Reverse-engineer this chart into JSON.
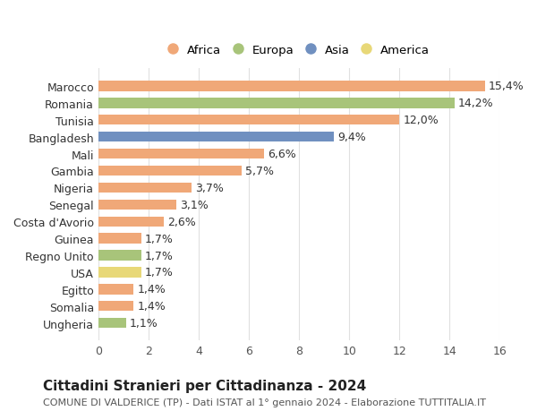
{
  "categories": [
    "Ungheria",
    "Somalia",
    "Egitto",
    "USA",
    "Regno Unito",
    "Guinea",
    "Costa d'Avorio",
    "Senegal",
    "Nigeria",
    "Gambia",
    "Mali",
    "Bangladesh",
    "Tunisia",
    "Romania",
    "Marocco"
  ],
  "values": [
    1.1,
    1.4,
    1.4,
    1.7,
    1.7,
    1.7,
    2.6,
    3.1,
    3.7,
    5.7,
    6.6,
    9.4,
    12.0,
    14.2,
    15.4
  ],
  "labels": [
    "1,1%",
    "1,4%",
    "1,4%",
    "1,7%",
    "1,7%",
    "1,7%",
    "2,6%",
    "3,1%",
    "3,7%",
    "5,7%",
    "6,6%",
    "9,4%",
    "12,0%",
    "14,2%",
    "15,4%"
  ],
  "colors": [
    "#a8c47a",
    "#f0a878",
    "#f0a878",
    "#e8d878",
    "#a8c47a",
    "#f0a878",
    "#f0a878",
    "#f0a878",
    "#f0a878",
    "#f0a878",
    "#f0a878",
    "#7090c0",
    "#f0a878",
    "#a8c47a",
    "#f0a878"
  ],
  "legend": [
    {
      "label": "Africa",
      "color": "#f0a878"
    },
    {
      "label": "Europa",
      "color": "#a8c47a"
    },
    {
      "label": "Asia",
      "color": "#7090c0"
    },
    {
      "label": "America",
      "color": "#e8d878"
    }
  ],
  "xlim": [
    0,
    16
  ],
  "xticks": [
    0,
    2,
    4,
    6,
    8,
    10,
    12,
    14,
    16
  ],
  "title": "Cittadini Stranieri per Cittadinanza - 2024",
  "subtitle": "COMUNE DI VALDERICE (TP) - Dati ISTAT al 1° gennaio 2024 - Elaborazione TUTTITALIA.IT",
  "bg_color": "#ffffff",
  "grid_color": "#e0e0e0",
  "bar_height": 0.6,
  "label_fontsize": 9,
  "tick_fontsize": 9,
  "title_fontsize": 11,
  "subtitle_fontsize": 8
}
